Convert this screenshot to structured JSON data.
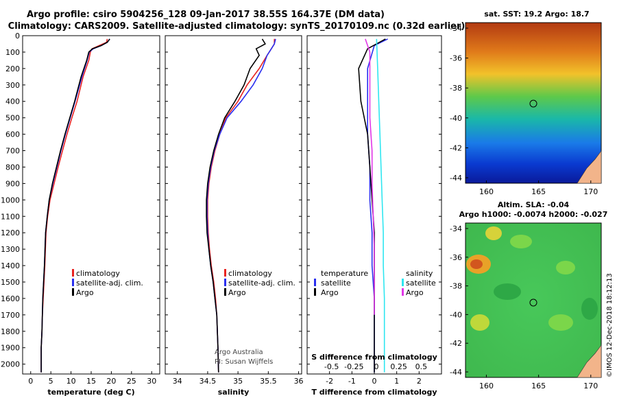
{
  "header": {
    "line1": "Argo profile: csiro 5904256_128 09-Jan-2017 38.55S 164.37E (DM data)",
    "line2": "Climatology: CARS2009. Satellite-adjusted climatology: synTS_20170109.nc (0.32d earlier)"
  },
  "colors": {
    "climatology": "#e8221f",
    "satellite": "#2a2ff0",
    "argo": "#000000",
    "sat_salinity": "#2ee6f0",
    "argo_salinity": "#e236e8"
  },
  "legend": {
    "temp": [
      "climatology",
      "satellite-adj. clim.",
      "Argo"
    ],
    "sal": [
      "climatology",
      "satellite-adj. clim.",
      "Argo"
    ],
    "diff_t_title": "temperature",
    "diff_s_title": "salinity",
    "diff_t": [
      "satellite",
      "Argo"
    ],
    "diff_s": [
      "satellite",
      "Argo"
    ]
  },
  "credit": {
    "line1": "Argo Australia",
    "line2": "PI: Susan Wijffels"
  },
  "sst_panel": {
    "title": "sat. SST: 19.2 Argo: 18.7"
  },
  "sla_panel": {
    "title1": "Altim. SLA: -0.04",
    "title2": "Argo h1000: -0.0074 h2000: -0.027"
  },
  "watermark": "©IMOS 12-Dec-2018 18:12:13",
  "chart_data": [
    {
      "type": "line",
      "xlabel": "temperature (deg C)",
      "xticks": [
        0,
        5,
        10,
        15,
        20,
        25,
        30
      ],
      "xlim": [
        -2,
        32
      ],
      "ylim": [
        2060,
        0
      ],
      "yticks": [
        0,
        100,
        200,
        300,
        400,
        500,
        600,
        700,
        800,
        900,
        1000,
        1100,
        1200,
        1300,
        1400,
        1500,
        1600,
        1700,
        1800,
        1900,
        2000
      ],
      "series": [
        {
          "name": "climatology",
          "x": [
            19.0,
            18.8,
            17.0,
            15.2,
            14.8,
            14.4,
            13.0,
            11.5,
            10.2,
            9.0,
            7.9,
            6.8,
            5.8,
            4.8,
            4.2,
            3.8,
            3.5,
            3.3,
            3.1,
            2.9,
            2.8,
            2.6,
            2.6
          ],
          "y": [
            20,
            40,
            60,
            80,
            100,
            150,
            250,
            400,
            500,
            600,
            700,
            800,
            900,
            1000,
            1100,
            1200,
            1400,
            1500,
            1600,
            1700,
            1800,
            1900,
            2050
          ]
        },
        {
          "name": "satellite-adj. clim.",
          "x": [
            19.6,
            19.0,
            17.5,
            15.5,
            14.5,
            14.0,
            12.7,
            11.0,
            9.8,
            8.6,
            7.5,
            6.5,
            5.5,
            4.6,
            4.1,
            3.7,
            3.4,
            3.2,
            3.0,
            2.9,
            2.8,
            2.6,
            2.6
          ],
          "y": [
            20,
            40,
            60,
            80,
            100,
            150,
            250,
            400,
            500,
            600,
            700,
            800,
            900,
            1000,
            1100,
            1200,
            1400,
            1500,
            1600,
            1700,
            1800,
            1900,
            2050
          ]
        },
        {
          "name": "Argo",
          "x": [
            19.6,
            19.0,
            17.5,
            15.3,
            14.4,
            13.9,
            12.5,
            10.9,
            9.7,
            8.5,
            7.4,
            6.4,
            5.4,
            4.6,
            4.1,
            3.7,
            3.4,
            3.2,
            3.0,
            2.9,
            2.8,
            2.6,
            2.6
          ],
          "y": [
            20,
            40,
            60,
            80,
            100,
            150,
            250,
            400,
            500,
            600,
            700,
            800,
            900,
            1000,
            1100,
            1200,
            1400,
            1500,
            1600,
            1700,
            1800,
            1900,
            2050
          ]
        }
      ]
    },
    {
      "type": "line",
      "xlabel": "salinity",
      "xticks": [
        34,
        34.5,
        35,
        35.5,
        36
      ],
      "xlim": [
        33.8,
        36.05
      ],
      "ylim": [
        2060,
        0
      ],
      "series": [
        {
          "name": "climatology",
          "x": [
            35.6,
            35.6,
            35.55,
            35.48,
            35.35,
            35.15,
            35.0,
            34.8,
            34.7,
            34.62,
            34.56,
            34.52,
            34.5,
            34.5,
            34.51,
            34.53,
            34.56,
            34.6,
            34.63,
            34.65,
            34.67,
            34.68
          ],
          "y": [
            20,
            50,
            80,
            120,
            200,
            300,
            400,
            500,
            600,
            700,
            800,
            900,
            1000,
            1100,
            1200,
            1300,
            1400,
            1500,
            1600,
            1700,
            1900,
            2050
          ]
        },
        {
          "name": "satellite-adj. clim.",
          "x": [
            35.62,
            35.6,
            35.55,
            35.48,
            35.4,
            35.25,
            35.05,
            34.82,
            34.7,
            34.61,
            34.55,
            34.51,
            34.49,
            34.49,
            34.5,
            34.52,
            34.55,
            34.59,
            34.62,
            34.65,
            34.67,
            34.68
          ],
          "y": [
            20,
            50,
            80,
            120,
            200,
            300,
            400,
            500,
            600,
            700,
            800,
            900,
            1000,
            1100,
            1200,
            1300,
            1400,
            1500,
            1600,
            1700,
            1900,
            2050
          ]
        },
        {
          "name": "Argo",
          "x": [
            35.4,
            35.45,
            35.3,
            35.35,
            35.2,
            35.1,
            34.95,
            34.78,
            34.68,
            34.6,
            34.54,
            34.5,
            34.48,
            34.48,
            34.49,
            34.52,
            34.55,
            34.59,
            34.62,
            34.65,
            34.67,
            34.68
          ],
          "y": [
            20,
            50,
            80,
            120,
            200,
            300,
            400,
            500,
            600,
            700,
            800,
            900,
            1000,
            1100,
            1200,
            1300,
            1400,
            1500,
            1600,
            1700,
            1900,
            2050
          ]
        }
      ]
    },
    {
      "type": "line",
      "xlabel": "T difference from climatology",
      "x2label": "S difference from climatology",
      "xticks": [
        -2,
        -1,
        0,
        1,
        2
      ],
      "x2ticks": [
        "-0.5",
        "-0.25",
        "0",
        "0.25",
        "0.5"
      ],
      "xlim": [
        -3,
        3
      ],
      "ylim": [
        2060,
        0
      ],
      "series": [
        {
          "name": "temperature satellite",
          "x": [
            0.6,
            0.0,
            -0.3,
            -0.3,
            -0.3,
            -0.2,
            -0.2,
            -0.1,
            -0.1,
            0.0,
            0.0,
            0.0
          ],
          "y": [
            20,
            60,
            200,
            400,
            600,
            800,
            1000,
            1200,
            1400,
            1600,
            1800,
            2050
          ]
        },
        {
          "name": "temperature Argo",
          "x": [
            0.5,
            -0.3,
            -0.7,
            -0.6,
            -0.3,
            -0.2,
            -0.1,
            0.0,
            0.0,
            0.0,
            0.0,
            0.0
          ],
          "y": [
            20,
            80,
            200,
            400,
            600,
            800,
            1000,
            1200,
            1400,
            1600,
            1800,
            2050
          ]
        },
        {
          "name": "salinity satellite",
          "x": [
            0.1,
            0.15,
            0.2,
            0.25,
            0.3,
            0.35,
            0.4,
            0.4,
            0.45,
            0.45,
            0.45
          ],
          "y": [
            20,
            200,
            400,
            600,
            800,
            1000,
            1200,
            1400,
            1600,
            1800,
            2050
          ]
        },
        {
          "name": "salinity Argo",
          "x": [
            -0.4,
            -0.2,
            -0.2,
            -0.2,
            -0.1,
            -0.1,
            -0.05,
            0.0,
            0.0,
            0.0
          ],
          "y": [
            20,
            100,
            300,
            500,
            700,
            900,
            1100,
            1300,
            1500,
            1700
          ]
        }
      ]
    }
  ]
}
